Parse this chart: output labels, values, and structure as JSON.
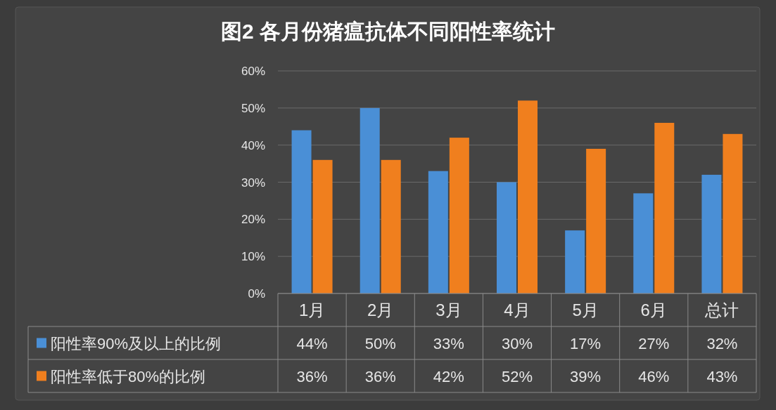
{
  "chart_data": {
    "type": "bar",
    "title": "图2 各月份猪瘟抗体不同阳性率统计",
    "categories": [
      "1月",
      "2月",
      "3月",
      "4月",
      "5月",
      "6月",
      "总计"
    ],
    "series": [
      {
        "name": "阳性率90%及以上的比例",
        "color": "#4a8fd6",
        "values": [
          44,
          50,
          33,
          30,
          17,
          27,
          32
        ],
        "value_labels": [
          "44%",
          "50%",
          "33%",
          "30%",
          "17%",
          "27%",
          "32%"
        ]
      },
      {
        "name": "阳性率低于80%的比例",
        "color": "#f07f1e",
        "values": [
          36,
          36,
          42,
          52,
          39,
          46,
          43
        ],
        "value_labels": [
          "36%",
          "36%",
          "42%",
          "52%",
          "39%",
          "46%",
          "43%"
        ]
      }
    ],
    "ylim": [
      0,
      60
    ],
    "yticks": [
      {
        "value": 0,
        "label": "0%"
      },
      {
        "value": 10,
        "label": "10%"
      },
      {
        "value": 20,
        "label": "20%"
      },
      {
        "value": 30,
        "label": "30%"
      },
      {
        "value": 40,
        "label": "40%"
      },
      {
        "value": 50,
        "label": "50%"
      },
      {
        "value": 60,
        "label": "60%"
      }
    ],
    "grid": "y",
    "legend": "bottom"
  }
}
